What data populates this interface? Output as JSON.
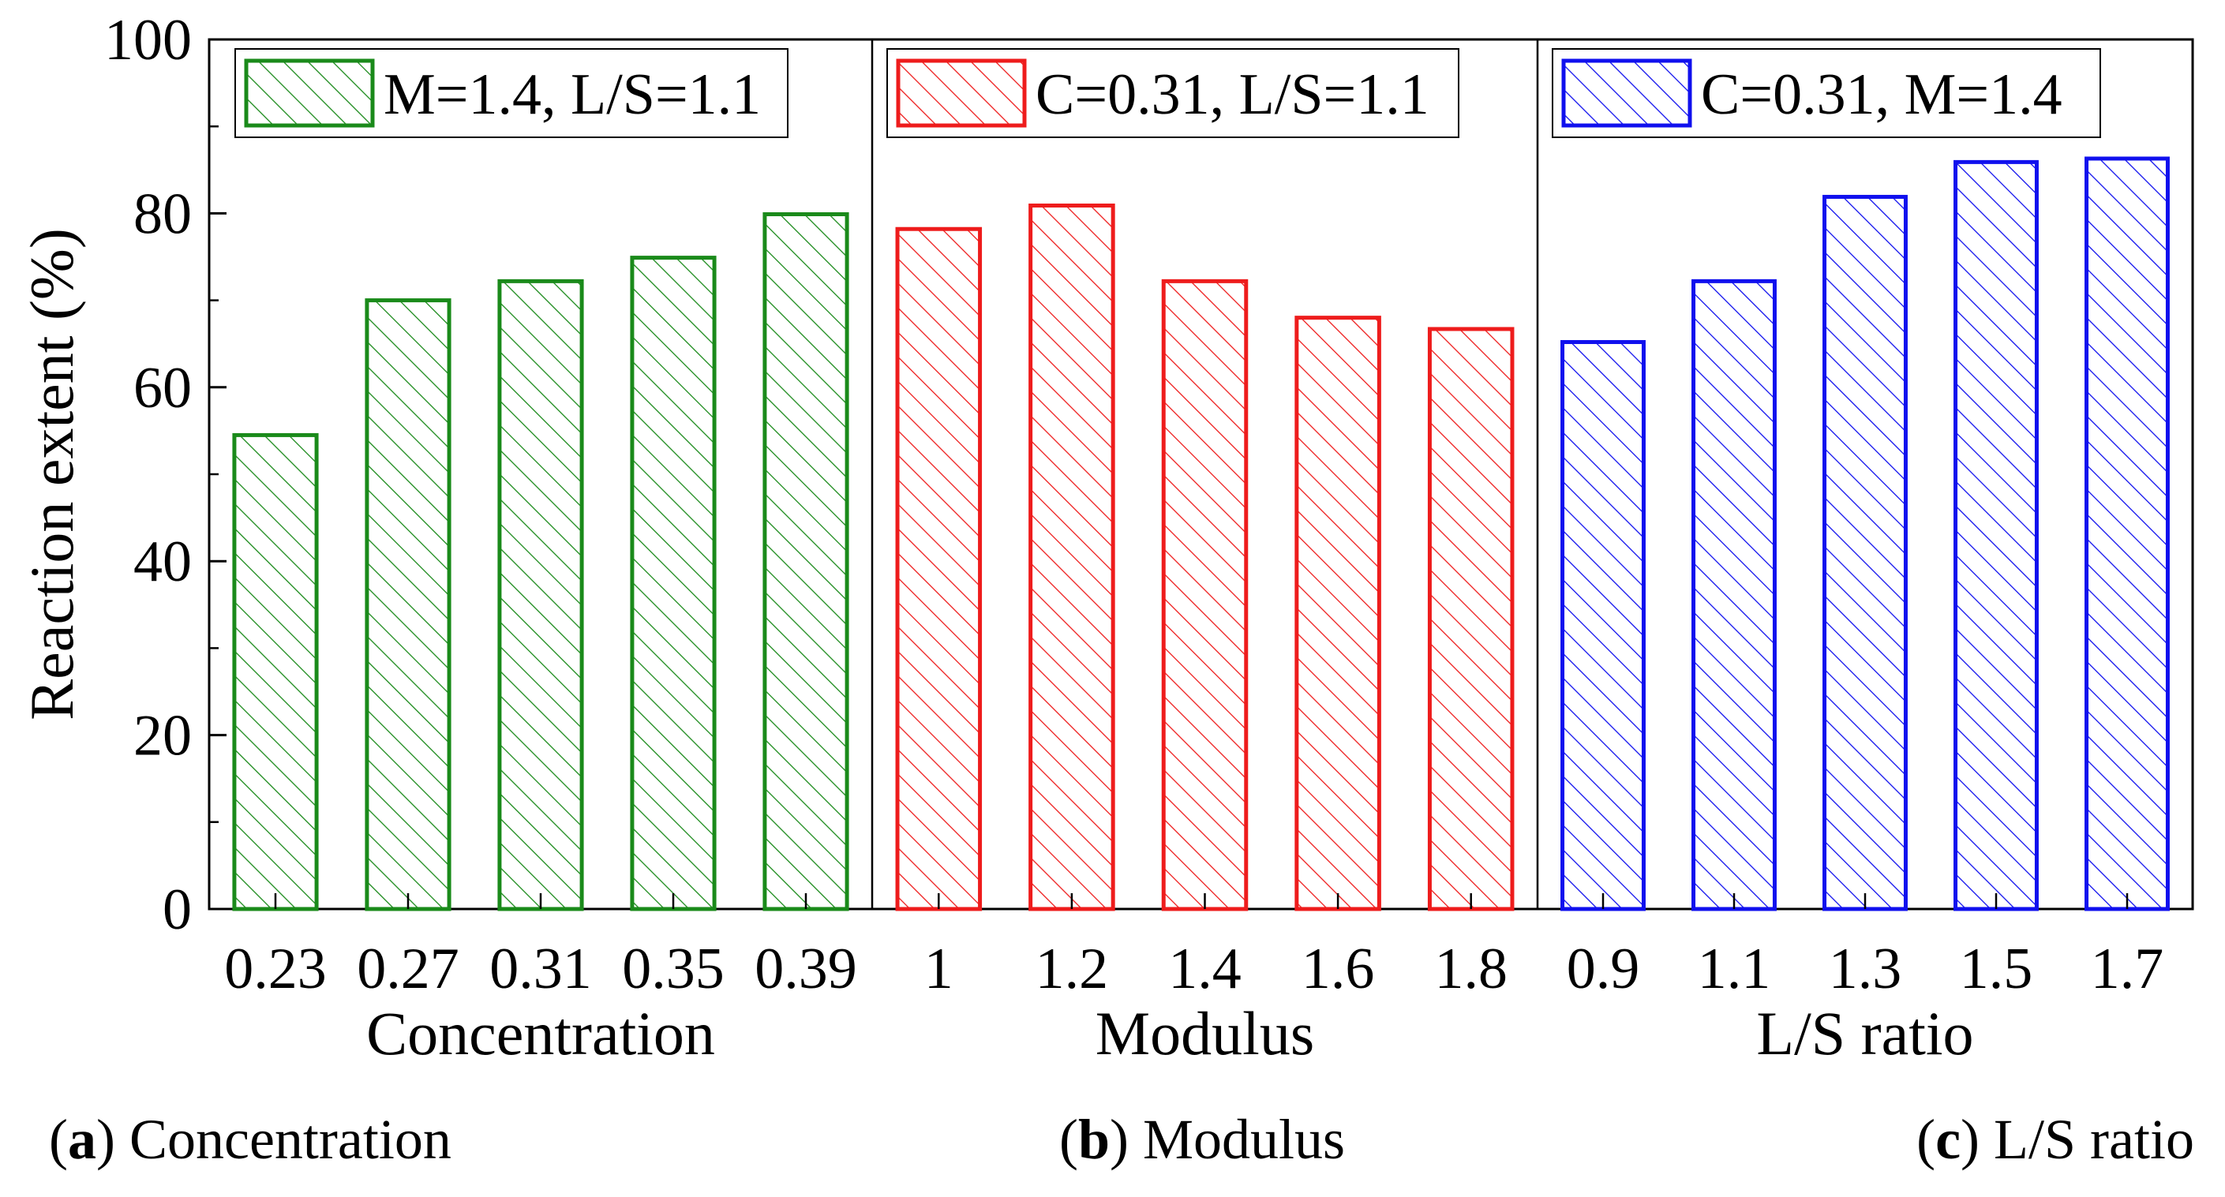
{
  "chart_data": {
    "type": "bar",
    "ylabel": "Reaction extent (%)",
    "ylim": [
      0,
      100
    ],
    "yticks": [
      "0",
      "20",
      "40",
      "60",
      "80",
      "100"
    ],
    "panels": [
      {
        "id": "a",
        "xlabel": "Concentration",
        "legend": "M=1.4, L/S=1.1",
        "color": "#1a8a1a",
        "categories": [
          "0.23",
          "0.27",
          "0.31",
          "0.35",
          "0.39"
        ],
        "values": [
          54.5,
          70.0,
          72.2,
          74.9,
          79.9
        ],
        "caption_letter": "a",
        "caption_text": "Concentration"
      },
      {
        "id": "b",
        "xlabel": "Modulus",
        "legend": "C=0.31, L/S=1.1",
        "color": "#ee1c1c",
        "categories": [
          "1",
          "1.2",
          "1.4",
          "1.6",
          "1.8"
        ],
        "values": [
          78.2,
          80.9,
          72.2,
          68.0,
          66.7
        ],
        "caption_letter": "b",
        "caption_text": "Modulus"
      },
      {
        "id": "c",
        "xlabel": "L/S ratio",
        "legend": "C=0.31, M=1.4",
        "color": "#1010ee",
        "categories": [
          "0.9",
          "1.1",
          "1.3",
          "1.5",
          "1.7"
        ],
        "values": [
          65.2,
          72.2,
          81.9,
          85.9,
          86.3
        ],
        "caption_letter": "c",
        "caption_text": "L/S ratio"
      }
    ]
  }
}
